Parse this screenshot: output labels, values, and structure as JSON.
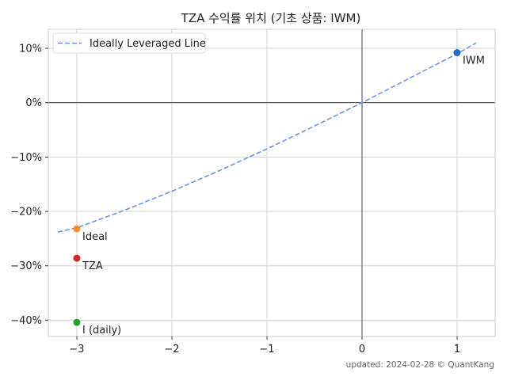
{
  "chart_data": {
    "type": "scatter",
    "title": "TZA 수익률 위치 (기초 상품: IWM)",
    "xlim": [
      -3.3,
      1.4
    ],
    "ylim": [
      -43,
      13.5
    ],
    "x_ticks": [
      -3,
      -2,
      -1,
      0,
      1
    ],
    "x_tick_labels": [
      "−3",
      "−2",
      "−1",
      "0",
      "1"
    ],
    "y_ticks": [
      10,
      0,
      -10,
      -20,
      -30,
      -40
    ],
    "y_tick_labels": [
      "10%",
      "0%",
      "−10%",
      "−20%",
      "−30%",
      "−40%"
    ],
    "grid": true,
    "legend_position": "top-left",
    "line": {
      "name": "Ideally Leveraged Line",
      "color": "#6495ED",
      "points": [
        [
          -3.2,
          -23.8
        ],
        [
          -3.0,
          -23.0
        ],
        [
          -2.5,
          -19.8
        ],
        [
          -2.0,
          -16.3
        ],
        [
          -1.5,
          -12.5
        ],
        [
          -1.0,
          -8.5
        ],
        [
          -0.5,
          -4.3
        ],
        [
          0.0,
          0.0
        ],
        [
          0.5,
          4.5
        ],
        [
          1.0,
          9.0
        ],
        [
          1.2,
          11.0
        ]
      ]
    },
    "points": [
      {
        "label": "IWM",
        "x": 1,
        "y": 9.2,
        "color": "#1f6fc5"
      },
      {
        "label": "Ideal",
        "x": -3,
        "y": -23.2,
        "color": "#f28e2b"
      },
      {
        "label": "TZA",
        "x": -3,
        "y": -28.6,
        "color": "#d62728"
      },
      {
        "label": "I (daily)",
        "x": -3,
        "y": -40.4,
        "color": "#2ca02c"
      }
    ]
  },
  "footer": "updated: 2024-02-28 © QuantKang"
}
